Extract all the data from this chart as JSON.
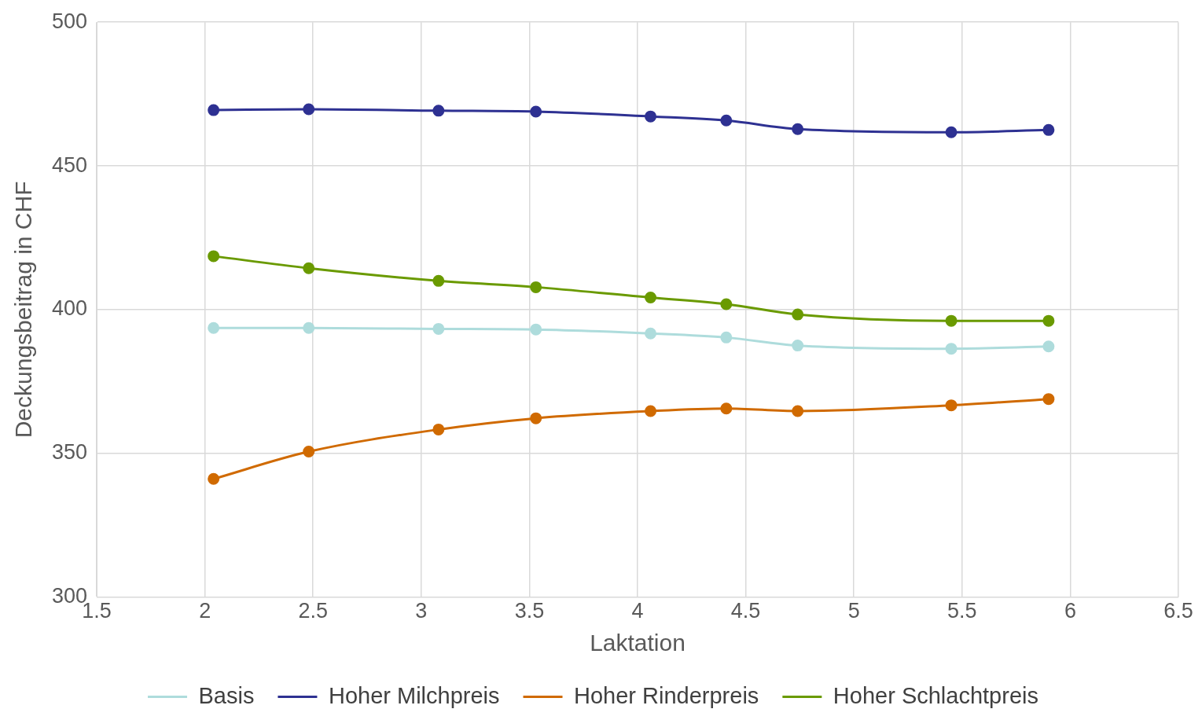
{
  "chart_data": {
    "type": "line",
    "xlabel": "Laktation",
    "ylabel": "Deckungsbeitrag in CHF",
    "x": [
      2.04,
      2.48,
      3.08,
      3.53,
      4.06,
      4.41,
      4.74,
      5.45,
      5.9
    ],
    "series": [
      {
        "name": "Basis",
        "color": "#aedcdc",
        "values": [
          393.6,
          393.6,
          393.3,
          393.1,
          391.7,
          390.3,
          387.5,
          386.4,
          387.2
        ]
      },
      {
        "name": "Hoher Milchpreis",
        "color": "#2e3192",
        "values": [
          469.4,
          469.7,
          469.2,
          468.9,
          467.2,
          465.8,
          462.8,
          461.7,
          462.5
        ]
      },
      {
        "name": "Hoher Rinderpreis",
        "color": "#d06a00",
        "values": [
          341.1,
          350.6,
          358.3,
          362.2,
          364.7,
          365.6,
          364.7,
          366.7,
          368.9
        ]
      },
      {
        "name": "Hoher Schlachtpreis",
        "color": "#6a9a00",
        "values": [
          418.6,
          414.4,
          410,
          407.8,
          404.2,
          401.9,
          398.3,
          396.1,
          396.1
        ]
      }
    ],
    "xlim": [
      1.5,
      6.5
    ],
    "xticks": [
      1.5,
      2,
      2.5,
      3,
      3.5,
      4,
      4.5,
      5,
      5.5,
      6,
      6.5
    ],
    "ylim": [
      300,
      500
    ],
    "yticks": [
      300,
      350,
      400,
      450,
      500
    ],
    "grid": true,
    "legend": "bottom",
    "marker": "circle",
    "line_style": "solid"
  }
}
